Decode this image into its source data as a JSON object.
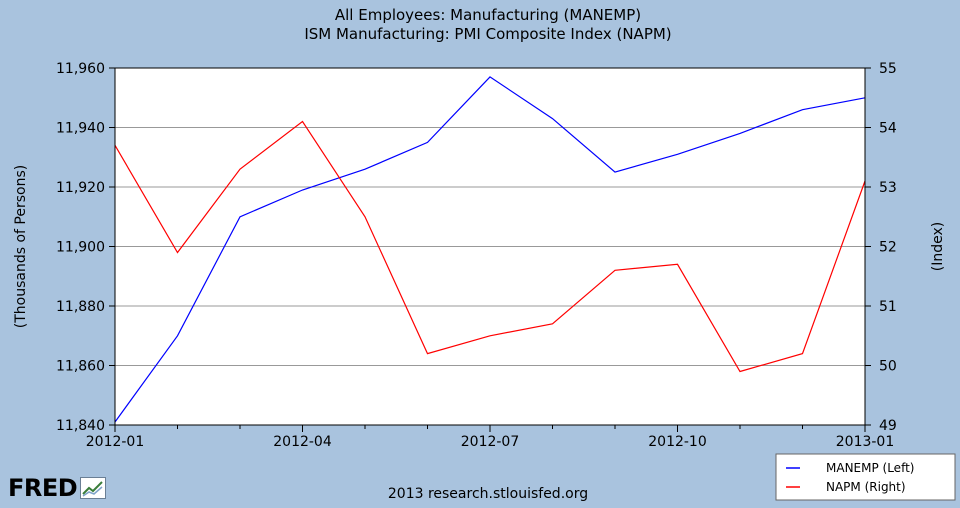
{
  "title_lines": [
    "All Employees: Manufacturing (MANEMP)",
    "ISM Manufacturing: PMI Composite Index (NAPM)"
  ],
  "credit": "2013 research.stlouisfed.org",
  "logo_text": "FRED",
  "colors": {
    "background": "#a9c3de",
    "plot_background": "#ffffff",
    "grid": "#999999",
    "manemp": "#0000ff",
    "napm": "#ff0000"
  },
  "chart_data": {
    "type": "line",
    "title": "All Employees: Manufacturing (MANEMP) / ISM Manufacturing: PMI Composite Index (NAPM)",
    "x": [
      "2012-01",
      "2012-02",
      "2012-03",
      "2012-04",
      "2012-05",
      "2012-06",
      "2012-07",
      "2012-08",
      "2012-09",
      "2012-10",
      "2012-11",
      "2012-12",
      "2013-01"
    ],
    "x_tick_labels": [
      "2012-01",
      "2012-04",
      "2012-07",
      "2012-10",
      "2013-01"
    ],
    "y_left": {
      "label": "(Thousands of Persons)",
      "range": [
        11840,
        11960
      ],
      "ticks": [
        11840,
        11860,
        11880,
        11900,
        11920,
        11940,
        11960
      ],
      "tick_labels": [
        "11,840",
        "11,860",
        "11,880",
        "11,900",
        "11,920",
        "11,940",
        "11,960"
      ]
    },
    "y_right": {
      "label": "(Index)",
      "range": [
        49,
        55
      ],
      "ticks": [
        49,
        50,
        51,
        52,
        53,
        54,
        55
      ],
      "tick_labels": [
        "49",
        "50",
        "51",
        "52",
        "53",
        "54",
        "55"
      ]
    },
    "grid": true,
    "legend_position": "bottom-right",
    "series": [
      {
        "name": "MANEMP (Left)",
        "axis": "left",
        "color": "#0000ff",
        "values": [
          11841,
          11870,
          11910,
          11919,
          11926,
          11935,
          11957,
          11943,
          11925,
          11931,
          11938,
          11946,
          11950
        ]
      },
      {
        "name": "NAPM (Right)",
        "axis": "right",
        "color": "#ff0000",
        "values": [
          53.7,
          51.9,
          53.3,
          54.1,
          52.5,
          50.2,
          50.5,
          50.7,
          51.6,
          51.7,
          49.9,
          50.2,
          53.1
        ]
      }
    ]
  }
}
